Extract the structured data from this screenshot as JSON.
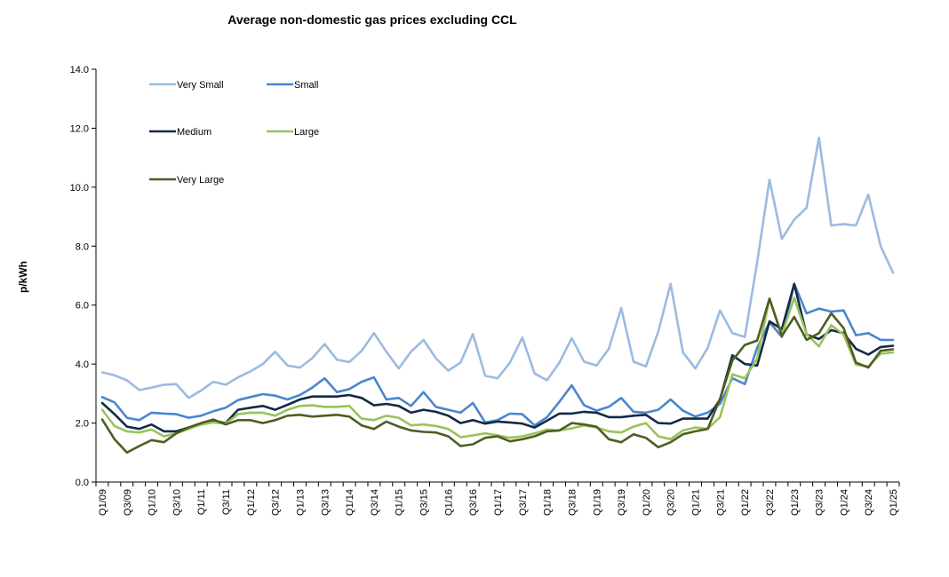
{
  "chart_data": {
    "type": "line",
    "title": "Average non-domestic gas prices excluding CCL",
    "xlabel": "",
    "ylabel": "p/kWh",
    "ylim": [
      0,
      14
    ],
    "yticks": [
      "0.0",
      "2.0",
      "4.0",
      "6.0",
      "8.0",
      "10.0",
      "12.0",
      "14.0"
    ],
    "grid": false,
    "legend_position": "top-left",
    "x": [
      "Q1/09",
      "Q2/09",
      "Q3/09",
      "Q4/09",
      "Q1/10",
      "Q2/10",
      "Q3/10",
      "Q4/10",
      "Q1/11",
      "Q2/11",
      "Q3/11",
      "Q4/11",
      "Q1/12",
      "Q2/12",
      "Q3/12",
      "Q4/12",
      "Q1/13",
      "Q2/13",
      "Q3/13",
      "Q4/13",
      "Q1/14",
      "Q2/14",
      "Q3/14",
      "Q4/14",
      "Q1/15",
      "Q2/15",
      "Q3/15",
      "Q4/15",
      "Q1/16",
      "Q2/16",
      "Q3/16",
      "Q4/16",
      "Q1/17",
      "Q2/17",
      "Q3/17",
      "Q4/17",
      "Q1/18",
      "Q2/18",
      "Q3/18",
      "Q4/18",
      "Q1/19",
      "Q2/19",
      "Q3/19",
      "Q4/19",
      "Q1/20",
      "Q2/20",
      "Q3/20",
      "Q4/20",
      "Q1/21",
      "Q2/21",
      "Q3/21",
      "Q4/21",
      "Q1/22",
      "Q2/22",
      "Q3/22",
      "Q4/22",
      "Q1/23",
      "Q2/23",
      "Q3/23",
      "Q4/23",
      "Q1/24",
      "Q2/24",
      "Q3/24",
      "Q4/24",
      "Q1/25"
    ],
    "xtick_labels": [
      "Q1/09",
      "Q3/09",
      "Q1/10",
      "Q3/10",
      "Q1/11",
      "Q3/11",
      "Q1/12",
      "Q3/12",
      "Q1/13",
      "Q3/13",
      "Q1/14",
      "Q3/14",
      "Q1/15",
      "Q3/15",
      "Q1/16",
      "Q3/16",
      "Q1/17",
      "Q3/17",
      "Q1/18",
      "Q3/18",
      "Q1/19",
      "Q3/19",
      "Q1/20",
      "Q3/20",
      "Q1/21",
      "Q3/21",
      "Q1/22",
      "Q3/22",
      "Q1/23",
      "Q3/23",
      "Q1/24",
      "Q3/24",
      "Q1/25"
    ],
    "series": [
      {
        "name": "Very Small",
        "color": "#9bbbe0",
        "values": [
          3.72,
          3.62,
          3.45,
          3.12,
          3.2,
          3.3,
          3.32,
          2.85,
          3.1,
          3.4,
          3.3,
          3.55,
          3.75,
          4.0,
          4.42,
          3.95,
          3.88,
          4.2,
          4.68,
          4.15,
          4.07,
          4.45,
          5.05,
          4.42,
          3.85,
          4.42,
          4.82,
          4.2,
          3.78,
          4.05,
          5.02,
          3.6,
          3.52,
          4.05,
          4.9,
          3.68,
          3.45,
          4.05,
          4.88,
          4.08,
          3.95,
          4.52,
          5.9,
          4.08,
          3.92,
          5.1,
          6.72,
          4.4,
          3.85,
          4.55,
          5.82,
          5.05,
          4.92,
          7.45,
          10.25,
          8.25,
          8.9,
          9.3,
          11.68,
          8.7,
          8.75,
          8.7,
          9.75,
          8.0,
          7.1
        ]
      },
      {
        "name": "Small",
        "color": "#4a86d0",
        "values": [
          2.88,
          2.7,
          2.18,
          2.1,
          2.35,
          2.32,
          2.3,
          2.18,
          2.25,
          2.4,
          2.52,
          2.78,
          2.88,
          2.98,
          2.93,
          2.8,
          2.95,
          3.2,
          3.52,
          3.05,
          3.15,
          3.4,
          3.55,
          2.8,
          2.85,
          2.58,
          3.05,
          2.55,
          2.45,
          2.35,
          2.68,
          2.02,
          2.1,
          2.32,
          2.3,
          1.92,
          2.2,
          2.72,
          3.28,
          2.6,
          2.42,
          2.55,
          2.85,
          2.38,
          2.35,
          2.45,
          2.8,
          2.42,
          2.22,
          2.35,
          2.65,
          3.52,
          3.32,
          4.55,
          5.42,
          4.92,
          6.72,
          5.72,
          5.88,
          5.78,
          5.82,
          4.98,
          5.05,
          4.82,
          4.82
        ]
      },
      {
        "name": "Medium",
        "color": "#142a45",
        "values": [
          2.68,
          2.3,
          1.88,
          1.8,
          1.95,
          1.72,
          1.72,
          1.85,
          1.95,
          2.08,
          2.0,
          2.45,
          2.52,
          2.58,
          2.45,
          2.62,
          2.8,
          2.9,
          2.9,
          2.9,
          2.95,
          2.85,
          2.6,
          2.65,
          2.58,
          2.35,
          2.45,
          2.38,
          2.25,
          2.0,
          2.1,
          1.98,
          2.05,
          2.02,
          1.98,
          1.85,
          2.08,
          2.32,
          2.32,
          2.38,
          2.35,
          2.2,
          2.2,
          2.25,
          2.28,
          2.0,
          1.98,
          2.15,
          2.15,
          2.15,
          2.8,
          4.3,
          4.0,
          3.95,
          5.45,
          5.18,
          6.72,
          5.0,
          4.85,
          5.15,
          5.05,
          4.52,
          4.32,
          4.58,
          4.62
        ]
      },
      {
        "name": "Large",
        "color": "#9bc25c",
        "values": [
          2.45,
          1.9,
          1.72,
          1.68,
          1.78,
          1.55,
          1.65,
          1.8,
          1.95,
          2.02,
          1.98,
          2.3,
          2.35,
          2.35,
          2.25,
          2.45,
          2.58,
          2.6,
          2.55,
          2.55,
          2.58,
          2.15,
          2.1,
          2.25,
          2.18,
          1.92,
          1.95,
          1.9,
          1.8,
          1.52,
          1.58,
          1.65,
          1.58,
          1.5,
          1.55,
          1.65,
          1.78,
          1.75,
          1.82,
          1.92,
          1.85,
          1.72,
          1.68,
          1.88,
          2.0,
          1.55,
          1.45,
          1.75,
          1.85,
          1.8,
          2.2,
          3.65,
          3.52,
          4.18,
          6.22,
          5.0,
          6.25,
          5.02,
          4.6,
          5.32,
          5.0,
          3.98,
          3.92,
          4.35,
          4.4
        ]
      },
      {
        "name": "Very Large",
        "color": "#4e5e22",
        "values": [
          2.12,
          1.45,
          1.0,
          1.22,
          1.42,
          1.35,
          1.65,
          1.85,
          2.0,
          2.12,
          1.95,
          2.1,
          2.1,
          2.0,
          2.1,
          2.25,
          2.28,
          2.22,
          2.25,
          2.28,
          2.22,
          1.92,
          1.8,
          2.05,
          1.88,
          1.75,
          1.7,
          1.68,
          1.55,
          1.22,
          1.28,
          1.5,
          1.55,
          1.38,
          1.45,
          1.55,
          1.72,
          1.75,
          2.0,
          1.95,
          1.88,
          1.45,
          1.35,
          1.62,
          1.5,
          1.18,
          1.35,
          1.62,
          1.72,
          1.8,
          2.82,
          4.12,
          4.65,
          4.8,
          6.22,
          4.95,
          5.6,
          4.82,
          5.05,
          5.72,
          5.22,
          4.05,
          3.88,
          4.45,
          4.5
        ]
      }
    ]
  }
}
